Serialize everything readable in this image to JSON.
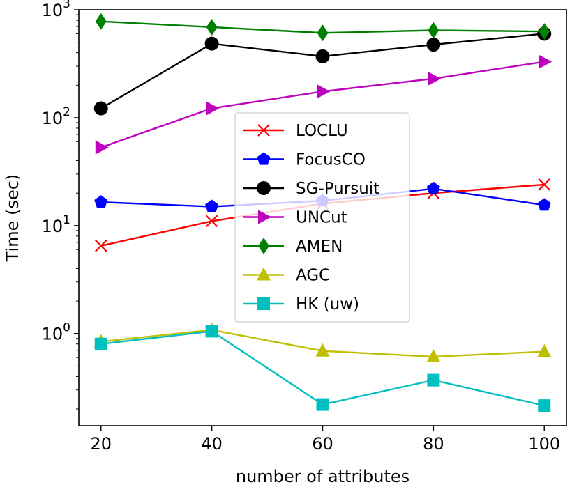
{
  "chart_data": {
    "type": "line",
    "xlabel": "number of attributes",
    "ylabel": "Time (sec)",
    "yscale": "log",
    "ylim": [
      0.14,
      1000
    ],
    "xlim": [
      16,
      104
    ],
    "x": [
      20,
      40,
      60,
      80,
      100
    ],
    "x_ticks": [
      "20",
      "40",
      "60",
      "80",
      "100"
    ],
    "y_ticks": [
      {
        "value": 1,
        "base": "10",
        "exp": "0"
      },
      {
        "value": 10,
        "base": "10",
        "exp": "1"
      },
      {
        "value": 100,
        "base": "10",
        "exp": "2"
      },
      {
        "value": 1000,
        "base": "10",
        "exp": "3"
      }
    ],
    "legend_position": "center",
    "series": [
      {
        "name": "LOCLU",
        "color": "#ff0000",
        "marker": "x",
        "values": [
          6.5,
          11,
          16,
          20,
          24
        ]
      },
      {
        "name": "FocusCO",
        "color": "#0000ff",
        "marker": "pentagon",
        "values": [
          16.5,
          15,
          17,
          22,
          15.5
        ]
      },
      {
        "name": "SG-Pursuit",
        "color": "#000000",
        "marker": "circle",
        "values": [
          122,
          485,
          370,
          475,
          600
        ]
      },
      {
        "name": "UNCut",
        "color": "#bf00bf",
        "marker": "triangle-right",
        "values": [
          53,
          122,
          175,
          230,
          330
        ]
      },
      {
        "name": "AMEN",
        "color": "#008000",
        "marker": "diamond",
        "values": [
          780,
          690,
          610,
          645,
          630
        ]
      },
      {
        "name": "AGC",
        "color": "#bfbf00",
        "marker": "triangle-up",
        "values": [
          0.84,
          1.08,
          0.69,
          0.61,
          0.68
        ]
      },
      {
        "name": "HK (uw)",
        "color": "#00bfbf",
        "marker": "square",
        "values": [
          0.8,
          1.05,
          0.22,
          0.37,
          0.215
        ]
      }
    ]
  }
}
